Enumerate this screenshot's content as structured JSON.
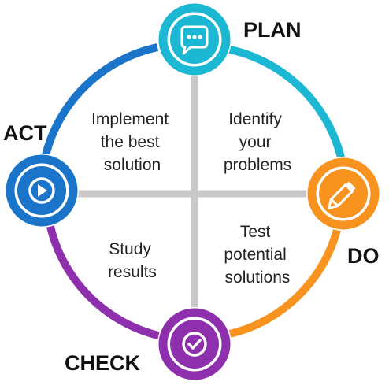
{
  "stages": {
    "plan": {
      "label": "PLAN",
      "color": "#1bb7d3",
      "icon": "speech-bubble-icon"
    },
    "do": {
      "label": "DO",
      "color": "#f7931e",
      "icon": "pencil-icon"
    },
    "check": {
      "label": "CHECK",
      "color": "#8e2fad",
      "icon": "checkmark-icon"
    },
    "act": {
      "label": "ACT",
      "color": "#1a74c9",
      "icon": "play-icon"
    }
  },
  "quadrants": {
    "top_left": {
      "lines": [
        "Implement",
        "the best",
        "solution"
      ]
    },
    "top_right": {
      "lines": [
        "Identify",
        "your",
        "problems"
      ]
    },
    "bottom_left": {
      "lines": [
        "Study",
        "results"
      ]
    },
    "bottom_right": {
      "lines": [
        "Test",
        "potential",
        "solutions"
      ]
    }
  },
  "divider_color": "#c8c8c8"
}
